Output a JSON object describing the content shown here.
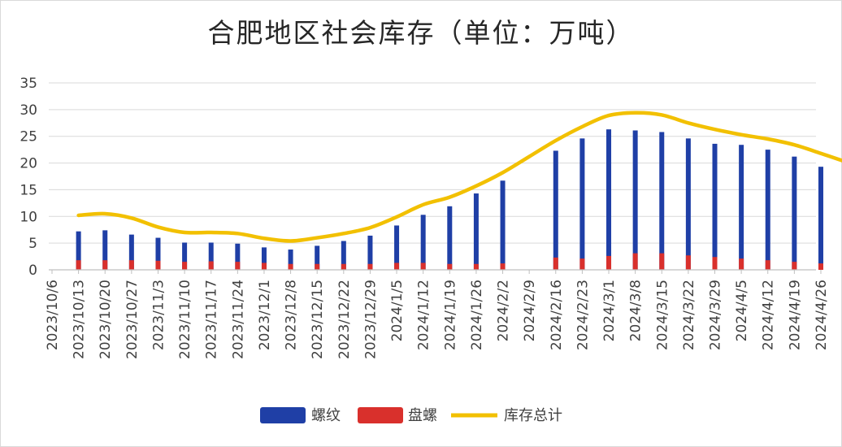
{
  "chart_data": {
    "type": "bar",
    "title": "合肥地区社会库存（单位：万吨）",
    "xlabel": "",
    "ylabel": "",
    "ylim": [
      0,
      35
    ],
    "yticks": [
      0,
      5,
      10,
      15,
      20,
      25,
      30,
      35
    ],
    "grid": true,
    "legend_position": "bottom",
    "categories": [
      "2023/10/6",
      "2023/10/13",
      "2023/10/20",
      "2023/10/27",
      "2023/11/3",
      "2023/11/10",
      "2023/11/17",
      "2023/11/24",
      "2023/12/1",
      "2023/12/8",
      "2023/12/15",
      "2023/12/22",
      "2023/12/29",
      "2024/1/5",
      "2024/1/12",
      "2024/1/19",
      "2024/1/26",
      "2024/2/2",
      "2024/2/9",
      "2024/2/16",
      "2024/2/23",
      "2024/3/1",
      "2024/3/8",
      "2024/3/15",
      "2024/3/22",
      "2024/3/29",
      "2024/4/5",
      "2024/4/12",
      "2024/4/19",
      "2024/4/26"
    ],
    "series": [
      {
        "name": "螺纹",
        "kind": "bar",
        "color": "#1f3fa6",
        "values": [
          null,
          7.2,
          7.4,
          6.6,
          6.0,
          5.1,
          5.1,
          4.9,
          4.2,
          3.8,
          4.5,
          5.4,
          6.4,
          8.3,
          10.3,
          11.9,
          14.3,
          16.7,
          null,
          22.3,
          24.6,
          26.3,
          26.1,
          25.8,
          24.6,
          23.6,
          23.4,
          22.5,
          21.2,
          19.3
        ]
      },
      {
        "name": "盘螺",
        "kind": "bar",
        "color": "#d9302c",
        "values": [
          null,
          1.8,
          1.8,
          1.8,
          1.7,
          1.5,
          1.6,
          1.5,
          1.3,
          1.1,
          1.1,
          1.1,
          1.1,
          1.3,
          1.3,
          1.1,
          1.1,
          1.2,
          null,
          2.3,
          2.1,
          2.6,
          3.1,
          3.1,
          2.7,
          2.4,
          2.1,
          1.8,
          1.5,
          1.2
        ]
      },
      {
        "name": "库存总计",
        "kind": "line",
        "color": "#f2c000",
        "points": [
          {
            "x": 1,
            "y": 10.2
          },
          {
            "x": 2,
            "y": 10.5
          },
          {
            "x": 3,
            "y": 9.7
          },
          {
            "x": 4,
            "y": 8.0
          },
          {
            "x": 5,
            "y": 7.0
          },
          {
            "x": 6,
            "y": 7.0
          },
          {
            "x": 7,
            "y": 6.8
          },
          {
            "x": 8,
            "y": 5.9
          },
          {
            "x": 9,
            "y": 5.4
          },
          {
            "x": 10,
            "y": 6.0
          },
          {
            "x": 11,
            "y": 6.8
          },
          {
            "x": 12,
            "y": 7.9
          },
          {
            "x": 13,
            "y": 9.9
          },
          {
            "x": 14,
            "y": 12.2
          },
          {
            "x": 15,
            "y": 13.6
          },
          {
            "x": 16,
            "y": 15.7
          },
          {
            "x": 17,
            "y": 18.2
          },
          {
            "x": 18,
            "y": 21.2
          },
          {
            "x": 19,
            "y": 24.2
          },
          {
            "x": 20,
            "y": 26.8
          },
          {
            "x": 21,
            "y": 28.9
          },
          {
            "x": 22,
            "y": 29.4
          },
          {
            "x": 23,
            "y": 29.0
          },
          {
            "x": 24,
            "y": 27.5
          },
          {
            "x": 25,
            "y": 26.3
          },
          {
            "x": 26,
            "y": 25.3
          },
          {
            "x": 27,
            "y": 24.5
          },
          {
            "x": 28,
            "y": 23.4
          },
          {
            "x": 29,
            "y": 21.8
          },
          {
            "x": 29.9,
            "y": 20.3
          }
        ]
      }
    ]
  }
}
